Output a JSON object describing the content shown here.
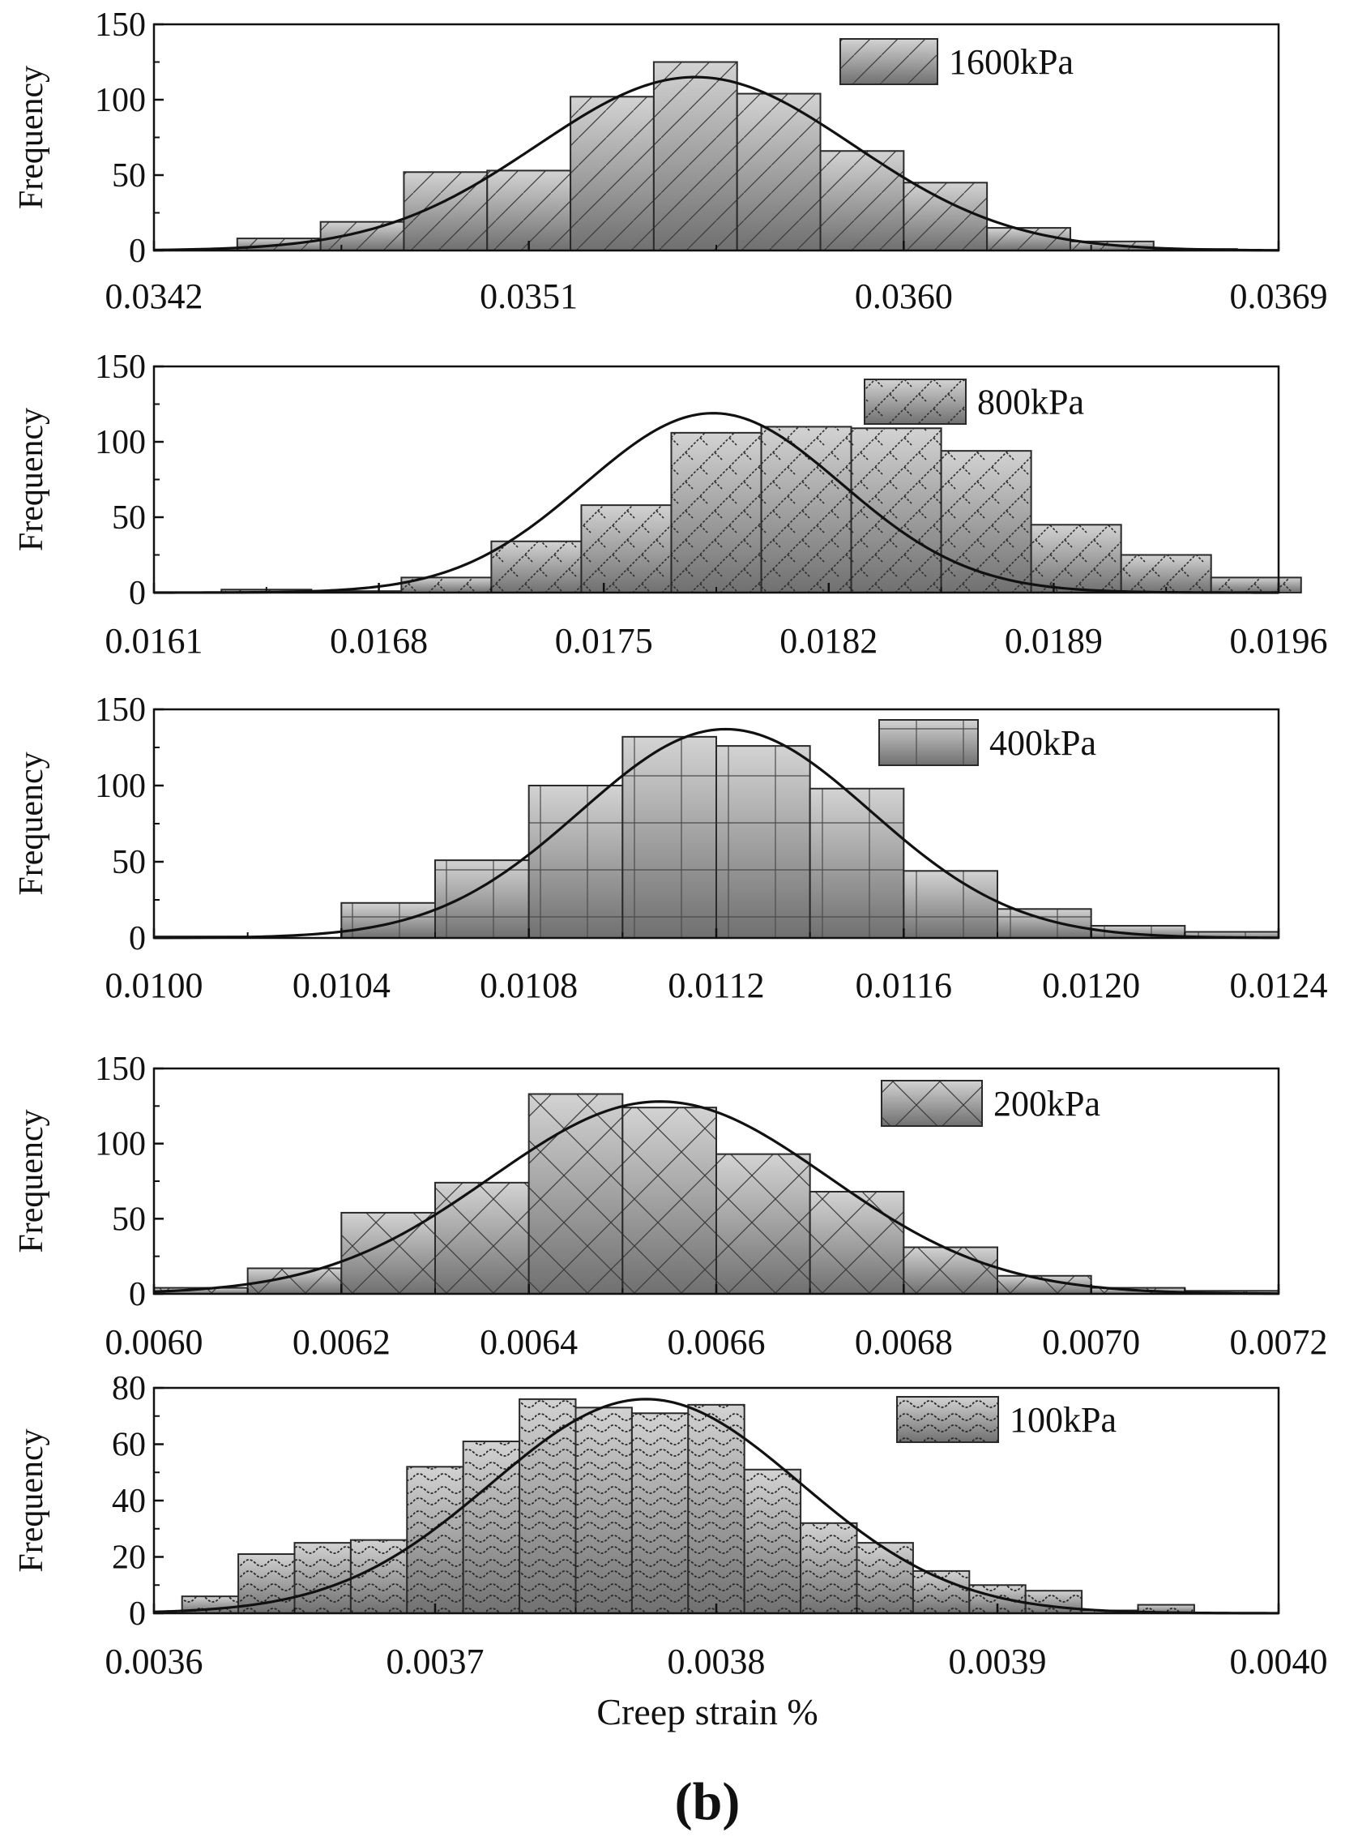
{
  "figure_label": "(b)",
  "colors": {
    "bar_top": "#d3d3d3",
    "bar_bottom": "#707070",
    "bar_stroke": "#2a2a2a",
    "curve": "#111111",
    "axis": "#111111",
    "hatch": "#3a3a3a"
  },
  "chart_data": [
    {
      "type": "bar",
      "panel": "1600kPa",
      "legend": "1600kPa",
      "legend_position": "top-right",
      "hatch": "diagonal",
      "xlabel": "",
      "ylabel": "Frequency",
      "xlim": [
        0.0342,
        0.0369
      ],
      "ylim": [
        0,
        150
      ],
      "xticks": [
        "0.0342",
        "0.0351",
        "0.0360",
        "0.0369"
      ],
      "yticks": [
        "0",
        "50",
        "100",
        "150"
      ],
      "bin_edges": [
        0.0344,
        0.0346,
        0.0348,
        0.035,
        0.0352,
        0.0354,
        0.0356,
        0.0358,
        0.036,
        0.0362,
        0.0364,
        0.0366,
        0.0368
      ],
      "values": [
        8,
        19,
        52,
        53,
        102,
        125,
        104,
        66,
        45,
        15,
        6,
        1
      ],
      "fit": {
        "type": "normal",
        "mean": 0.0355,
        "std": 0.00038,
        "peak": 115
      }
    },
    {
      "type": "bar",
      "panel": "800kPa",
      "legend": "800kPa",
      "legend_position": "top-right",
      "hatch": "zigzag",
      "xlabel": "",
      "ylabel": "Frequency",
      "xlim": [
        0.0161,
        0.0196
      ],
      "ylim": [
        0,
        150
      ],
      "xticks": [
        "0.0161",
        "0.0168",
        "0.0175",
        "0.0182",
        "0.0189",
        "0.0196"
      ],
      "yticks": [
        "0",
        "50",
        "100",
        "150"
      ],
      "bin_edges": [
        0.01631,
        0.01659,
        0.01687,
        0.01715,
        0.01743,
        0.01771,
        0.01799,
        0.01827,
        0.01855,
        0.01883,
        0.01911,
        0.01939,
        0.01967
      ],
      "values": [
        2,
        1,
        10,
        34,
        58,
        106,
        110,
        109,
        94,
        45,
        25,
        10
      ],
      "fit": {
        "type": "normal",
        "mean": 0.01784,
        "std": 0.0004,
        "peak": 119
      }
    },
    {
      "type": "bar",
      "panel": "400kPa",
      "legend": "400kPa",
      "legend_position": "top-right",
      "hatch": "grid",
      "xlabel": "",
      "ylabel": "Frequency",
      "xlim": [
        0.01,
        0.0124
      ],
      "ylim": [
        0,
        150
      ],
      "xticks": [
        "0.0100",
        "0.0104",
        "0.0108",
        "0.0112",
        "0.0116",
        "0.0120",
        "0.0124"
      ],
      "yticks": [
        "0",
        "50",
        "100",
        "150"
      ],
      "bin_edges": [
        0.01,
        0.0102,
        0.0104,
        0.0106,
        0.0108,
        0.011,
        0.0112,
        0.0114,
        0.0116,
        0.0118,
        0.012,
        0.0122,
        0.0124
      ],
      "values": [
        1,
        0,
        23,
        51,
        100,
        132,
        126,
        98,
        44,
        19,
        8,
        4
      ],
      "fit": {
        "type": "normal",
        "mean": 0.01122,
        "std": 0.00031,
        "peak": 137
      }
    },
    {
      "type": "bar",
      "panel": "200kPa",
      "legend": "200kPa",
      "legend_position": "top-right",
      "hatch": "crosshatch",
      "xlabel": "",
      "ylabel": "Frequency",
      "xlim": [
        0.006,
        0.0072
      ],
      "ylim": [
        0,
        150
      ],
      "xticks": [
        "0.0060",
        "0.0062",
        "0.0064",
        "0.0066",
        "0.0068",
        "0.0070",
        "0.0072"
      ],
      "yticks": [
        "0",
        "50",
        "100",
        "150"
      ],
      "bin_edges": [
        0.006,
        0.0061,
        0.0062,
        0.0063,
        0.0064,
        0.0065,
        0.0066,
        0.0067,
        0.0068,
        0.0069,
        0.007,
        0.0071,
        0.0072
      ],
      "values": [
        4,
        17,
        54,
        74,
        133,
        124,
        93,
        68,
        31,
        12,
        4,
        2
      ],
      "fit": {
        "type": "normal",
        "mean": 0.00654,
        "std": 0.00018,
        "peak": 128
      }
    },
    {
      "type": "bar",
      "panel": "100kPa",
      "legend": "100kPa",
      "legend_position": "top-right",
      "hatch": "wave",
      "xlabel": "Creep strain %",
      "ylabel": "Frequency",
      "xlim": [
        0.0036,
        0.004
      ],
      "ylim": [
        0,
        80
      ],
      "xticks": [
        "0.0036",
        "0.0037",
        "0.0038",
        "0.0039",
        "0.0040"
      ],
      "yticks": [
        "0",
        "20",
        "40",
        "60",
        "80"
      ],
      "bin_edges": [
        0.00361,
        0.00363,
        0.00365,
        0.00367,
        0.00369,
        0.00371,
        0.00373,
        0.00375,
        0.00377,
        0.00379,
        0.00381,
        0.00383,
        0.00385,
        0.00387,
        0.00389,
        0.00391,
        0.00393,
        0.00395,
        0.00397
      ],
      "values": [
        6,
        21,
        25,
        26,
        52,
        61,
        76,
        73,
        71,
        74,
        51,
        32,
        25,
        15,
        10,
        8,
        1,
        3
      ],
      "fit": {
        "type": "normal",
        "mean": 0.003775,
        "std": 5.5e-05,
        "peak": 76
      }
    }
  ]
}
